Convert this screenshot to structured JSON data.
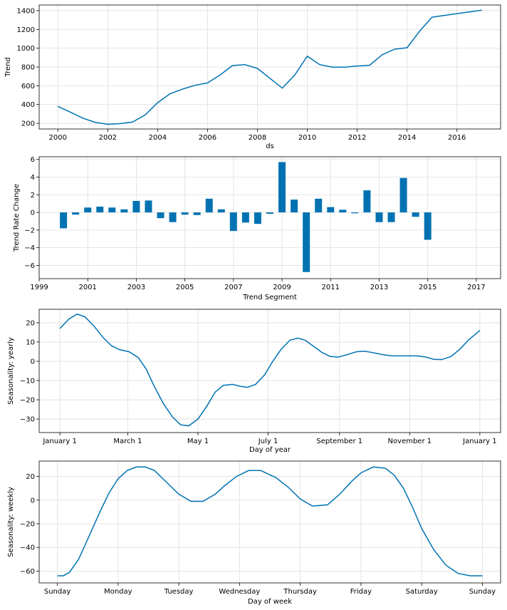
{
  "colors": {
    "series": "#0072B2",
    "grid": "#dddddd"
  },
  "chart_data": [
    {
      "type": "line",
      "xlabel": "ds",
      "ylabel": "Trend",
      "xlim": [
        1999.25,
        2017.75
      ],
      "ylim": [
        140,
        1460
      ],
      "xticks": [
        2000,
        2002,
        2004,
        2006,
        2008,
        2010,
        2012,
        2014,
        2016
      ],
      "xticklabels": [
        "2000",
        "2002",
        "2004",
        "2006",
        "2008",
        "2010",
        "2012",
        "2014",
        "2016"
      ],
      "yticks": [
        200,
        400,
        600,
        800,
        1000,
        1200,
        1400
      ],
      "yticklabels": [
        "200",
        "400",
        "600",
        "800",
        "1000",
        "1200",
        "1400"
      ],
      "grid": true,
      "x": [
        2000,
        2000.5,
        2001,
        2001.5,
        2002,
        2002.5,
        2003,
        2003.5,
        2004,
        2004.5,
        2005,
        2005.5,
        2006,
        2006.5,
        2007,
        2007.5,
        2008,
        2008.5,
        2009,
        2009.5,
        2010,
        2010.5,
        2011,
        2011.5,
        2012,
        2012.5,
        2013,
        2013.5,
        2014,
        2014.5,
        2015,
        2017
      ],
      "y": [
        380,
        320,
        255,
        210,
        190,
        197,
        215,
        290,
        420,
        515,
        565,
        605,
        630,
        715,
        815,
        825,
        785,
        680,
        575,
        715,
        915,
        825,
        798,
        798,
        810,
        818,
        930,
        990,
        1005,
        1180,
        1330,
        1405
      ]
    },
    {
      "type": "bar",
      "xlabel": "Trend Segment",
      "ylabel": "Trend Rate Change",
      "xlim": [
        1999,
        2018
      ],
      "ylim": [
        -7.5,
        6.3
      ],
      "xticks": [
        1999,
        2001,
        2003,
        2005,
        2007,
        2009,
        2011,
        2013,
        2015,
        2017
      ],
      "xticklabels": [
        "1999",
        "2001",
        "2003",
        "2005",
        "2007",
        "2009",
        "2011",
        "2013",
        "2015",
        "2017"
      ],
      "yticks": [
        -6,
        -4,
        -2,
        0,
        2,
        4,
        6
      ],
      "yticklabels": [
        "−6",
        "−4",
        "−2",
        "0",
        "2",
        "4",
        "6"
      ],
      "grid": true,
      "x": [
        2000,
        2000.5,
        2001,
        2001.5,
        2002,
        2002.5,
        2003,
        2003.5,
        2004,
        2004.5,
        2005,
        2005.5,
        2006,
        2006.5,
        2007,
        2007.5,
        2008,
        2008.5,
        2009,
        2009.5,
        2010,
        2010.5,
        2011,
        2011.5,
        2012,
        2012.5,
        2013,
        2013.5,
        2014,
        2014.5,
        2015
      ],
      "values": [
        -1.8,
        -0.25,
        0.55,
        0.65,
        0.55,
        0.35,
        1.3,
        1.35,
        -0.65,
        -1.1,
        -0.25,
        -0.3,
        1.55,
        0.35,
        -2.1,
        -1.15,
        -1.3,
        -0.15,
        5.7,
        1.45,
        -6.75,
        1.55,
        0.6,
        0.3,
        -0.1,
        2.5,
        -1.1,
        -1.1,
        3.9,
        -0.5,
        -3.1
      ]
    },
    {
      "type": "line",
      "xlabel": "Day of year",
      "ylabel": "Seasonality: yearly",
      "xlim": [
        -18,
        383
      ],
      "ylim": [
        -37,
        27
      ],
      "xticks": [
        0,
        59,
        120,
        181,
        243,
        304,
        365
      ],
      "xticklabels": [
        "January 1",
        "March 1",
        "May 1",
        "July 1",
        "September 1",
        "November 1",
        "January 1"
      ],
      "yticks": [
        -30,
        -20,
        -10,
        0,
        10,
        20
      ],
      "yticklabels": [
        "−30",
        "−20",
        "−10",
        "0",
        "10",
        "20"
      ],
      "grid": true,
      "x": [
        0,
        8,
        15,
        22,
        30,
        38,
        45,
        52,
        60,
        68,
        75,
        82,
        90,
        98,
        105,
        112,
        120,
        128,
        135,
        142,
        150,
        157,
        163,
        170,
        178,
        185,
        192,
        200,
        207,
        213,
        220,
        228,
        235,
        242,
        250,
        258,
        265,
        272,
        280,
        288,
        295,
        302,
        310,
        318,
        325,
        332,
        340,
        348,
        355,
        365
      ],
      "y": [
        17,
        22,
        24.5,
        23,
        18,
        12,
        8,
        6,
        5,
        2,
        -4,
        -13,
        -22,
        -29,
        -33,
        -33.5,
        -30,
        -23,
        -16,
        -12.5,
        -12,
        -13,
        -13.5,
        -12,
        -7,
        0,
        6,
        11,
        12,
        11,
        8,
        4.5,
        2.5,
        2.2,
        3.5,
        5,
        5.2,
        4.5,
        3.5,
        2.8,
        2.8,
        2.8,
        2.8,
        2.2,
        1,
        0.9,
        2.5,
        6.5,
        11,
        16
      ]
    },
    {
      "type": "line",
      "xlabel": "Day of week",
      "ylabel": "Seasonality: weekly",
      "xlim": [
        -0.3,
        7.3
      ],
      "ylim": [
        -70,
        33
      ],
      "xticks": [
        0,
        1,
        2,
        3,
        4,
        5,
        6,
        7
      ],
      "xticklabels": [
        "Sunday",
        "Monday",
        "Tuesday",
        "Wednesday",
        "Thursday",
        "Friday",
        "Saturday",
        "Sunday"
      ],
      "yticks": [
        -60,
        -40,
        -20,
        0,
        20
      ],
      "yticklabels": [
        "−60",
        "−40",
        "−20",
        "0",
        "20"
      ],
      "grid": true,
      "x": [
        0,
        0.1,
        0.2,
        0.35,
        0.5,
        0.7,
        0.85,
        1.0,
        1.15,
        1.3,
        1.45,
        1.6,
        1.8,
        2.0,
        2.2,
        2.4,
        2.6,
        2.75,
        2.95,
        3.15,
        3.35,
        3.6,
        3.8,
        4.0,
        4.2,
        4.45,
        4.65,
        4.85,
        5.0,
        5.2,
        5.4,
        5.55,
        5.7,
        5.85,
        6.0,
        6.2,
        6.4,
        6.6,
        6.8,
        6.9,
        7.0
      ],
      "y": [
        -64,
        -64,
        -61,
        -50,
        -33,
        -10,
        6,
        18,
        25,
        28,
        28,
        25,
        15,
        5,
        -1,
        -1,
        5,
        12,
        20,
        25,
        25,
        19,
        11,
        1,
        -5,
        -4,
        5,
        16,
        23,
        28,
        27,
        21,
        10,
        -6,
        -24,
        -42,
        -55,
        -62,
        -64,
        -64,
        -64
      ]
    }
  ]
}
